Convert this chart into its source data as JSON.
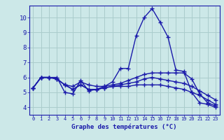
{
  "title": "Graphe des temératures (°c)",
  "xlabel": "Graphe des températures (°C)",
  "background_color": "#cce8e8",
  "grid_color": "#aacccc",
  "line_color": "#1a1aaa",
  "xlim": [
    -0.5,
    23.5
  ],
  "ylim": [
    3.5,
    10.8
  ],
  "yticks": [
    4,
    5,
    6,
    7,
    8,
    9,
    10
  ],
  "xticks": [
    0,
    1,
    2,
    3,
    4,
    5,
    6,
    7,
    8,
    9,
    10,
    11,
    12,
    13,
    14,
    15,
    16,
    17,
    18,
    19,
    20,
    21,
    22,
    23
  ],
  "line1_x": [
    0,
    1,
    2,
    3,
    4,
    5,
    6,
    7,
    8,
    9,
    10,
    11,
    12,
    13,
    14,
    15,
    16,
    17,
    18,
    19,
    20,
    21,
    22,
    23
  ],
  "line1_y": [
    5.3,
    6.0,
    6.0,
    6.0,
    5.0,
    4.9,
    5.8,
    5.1,
    5.2,
    5.4,
    5.7,
    6.6,
    6.6,
    8.8,
    10.0,
    10.6,
    9.7,
    8.7,
    6.5,
    6.4,
    5.0,
    4.3,
    4.2,
    4.0
  ],
  "line2_x": [
    0,
    1,
    2,
    3,
    4,
    5,
    6,
    7,
    8,
    9,
    10,
    11,
    12,
    13,
    14,
    15,
    16,
    17,
    18,
    19,
    20,
    21,
    22,
    23
  ],
  "line2_y": [
    5.3,
    6.0,
    6.0,
    5.9,
    5.5,
    5.4,
    5.7,
    5.5,
    5.4,
    5.4,
    5.5,
    5.6,
    5.8,
    6.0,
    6.2,
    6.3,
    6.3,
    6.3,
    6.3,
    6.3,
    5.9,
    4.9,
    4.3,
    4.1
  ],
  "line3_x": [
    0,
    1,
    2,
    3,
    4,
    5,
    6,
    7,
    8,
    9,
    10,
    11,
    12,
    13,
    14,
    15,
    16,
    17,
    18,
    19,
    20,
    21,
    22,
    23
  ],
  "line3_y": [
    5.3,
    6.0,
    6.0,
    5.9,
    5.5,
    5.2,
    5.5,
    5.2,
    5.2,
    5.3,
    5.4,
    5.5,
    5.6,
    5.7,
    5.9,
    6.0,
    5.9,
    5.8,
    5.7,
    5.6,
    5.4,
    5.1,
    4.8,
    4.5
  ],
  "line4_x": [
    0,
    1,
    2,
    3,
    4,
    5,
    6,
    7,
    8,
    9,
    10,
    11,
    12,
    13,
    14,
    15,
    16,
    17,
    18,
    19,
    20,
    21,
    22,
    23
  ],
  "line4_y": [
    5.3,
    6.0,
    6.0,
    5.9,
    5.5,
    5.2,
    5.5,
    5.2,
    5.2,
    5.3,
    5.4,
    5.4,
    5.4,
    5.5,
    5.5,
    5.5,
    5.5,
    5.4,
    5.3,
    5.2,
    5.0,
    4.8,
    4.5,
    4.2
  ]
}
